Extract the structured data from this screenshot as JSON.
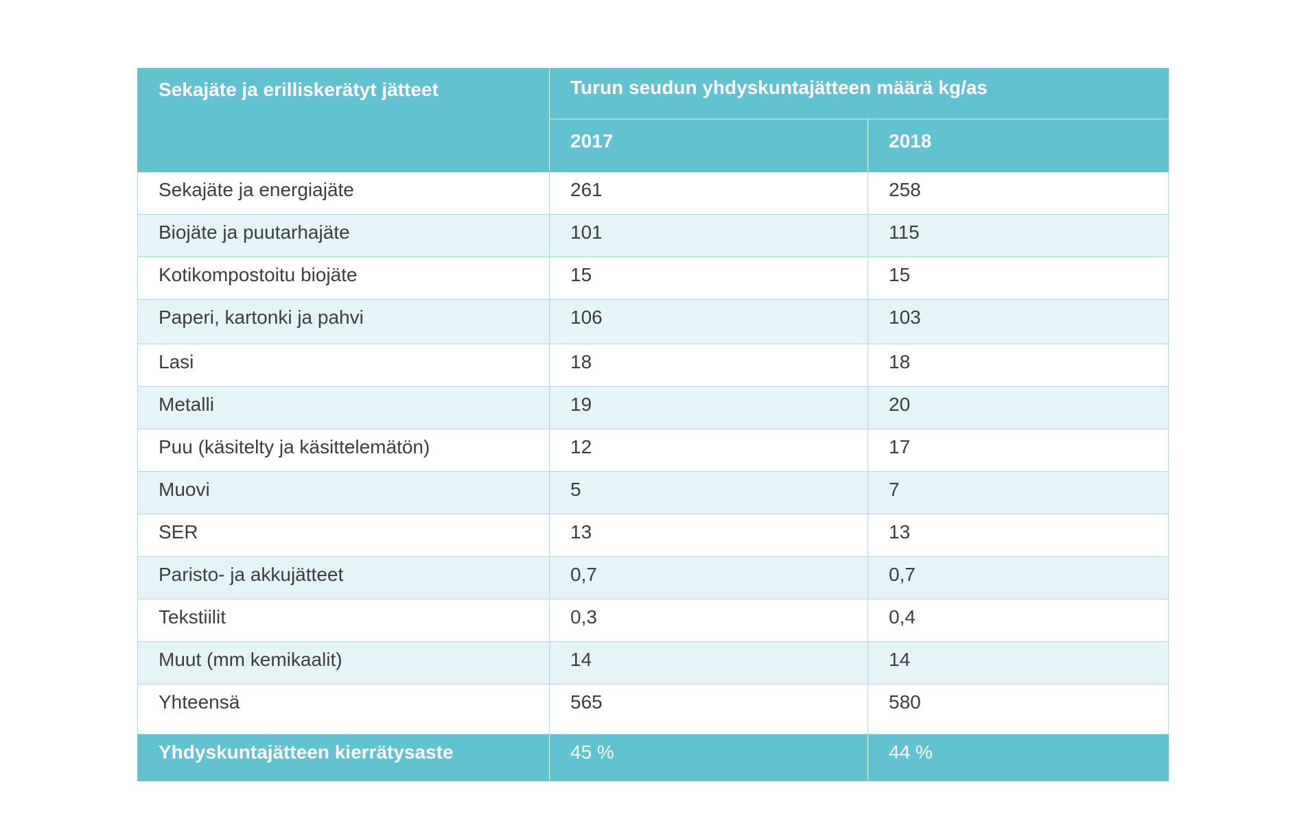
{
  "table": {
    "header_label": "Sekajäte ja erilliskerätyt jätteet",
    "header_title": "Turun seudun yhdyskuntajätteen määrä kg/as",
    "years": [
      "2017",
      "2018"
    ],
    "rows": [
      {
        "label": "Sekajäte ja energiajäte",
        "v2017": "261",
        "v2018": "258"
      },
      {
        "label": "Biojäte ja puutarhajäte",
        "v2017": "101",
        "v2018": "115"
      },
      {
        "label": "Kotikompostoitu biojäte",
        "v2017": "15",
        "v2018": "15"
      },
      {
        "label": "Paperi, kartonki ja pahvi",
        "v2017": "106",
        "v2018": "103"
      },
      {
        "label": "Lasi",
        "v2017": "18",
        "v2018": "18"
      },
      {
        "label": "Metalli",
        "v2017": "19",
        "v2018": "20"
      },
      {
        "label": "Puu (käsitelty ja käsittelemätön)",
        "v2017": "12",
        "v2018": "17"
      },
      {
        "label": "Muovi",
        "v2017": "5",
        "v2018": "7"
      },
      {
        "label": "SER",
        "v2017": "13",
        "v2018": "13"
      },
      {
        "label": "Paristo- ja akkujätteet",
        "v2017": "0,7",
        "v2018": "0,7"
      },
      {
        "label": "Tekstiilit",
        "v2017": "0,3",
        "v2018": "0,4"
      },
      {
        "label": "Muut (mm kemikaalit)",
        "v2017": "14",
        "v2018": "14"
      },
      {
        "label": "Yhteensä",
        "v2017": "565",
        "v2018": "580"
      }
    ],
    "footer": {
      "label": "Yhdyskuntajätteen kierrätysaste",
      "v2017": "45 %",
      "v2018": "44 %"
    }
  },
  "colors": {
    "header_bg": "#62c2cf",
    "alt_row_bg": "#e5f4f6",
    "border": "#a9dde5",
    "text": "#3d3d3d"
  }
}
